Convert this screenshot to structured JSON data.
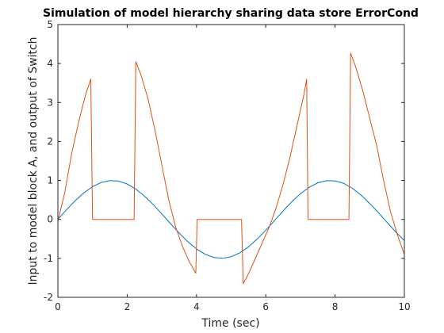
{
  "chart_data": {
    "type": "line",
    "title": "Simulation of model hierarchy sharing data store ErrorCond",
    "xlabel": "Time (sec)",
    "ylabel": "Input to model block A, and output of Switch",
    "xlim": [
      0,
      10
    ],
    "ylim": [
      -2,
      5
    ],
    "xticks": [
      0,
      2,
      4,
      6,
      8,
      10
    ],
    "yticks": [
      -2,
      -1,
      0,
      1,
      2,
      3,
      4,
      5
    ],
    "grid": false,
    "series": [
      {
        "color": "#0072bd",
        "x": [
          0,
          0.25,
          0.5,
          0.75,
          1,
          1.25,
          1.5,
          1.75,
          2,
          2.25,
          2.5,
          2.75,
          3,
          3.25,
          3.5,
          3.75,
          4,
          4.25,
          4.5,
          4.75,
          5,
          5.25,
          5.5,
          5.75,
          6,
          6.25,
          6.5,
          6.75,
          7,
          7.25,
          7.5,
          7.75,
          8,
          8.25,
          8.5,
          8.75,
          9,
          9.25,
          9.5,
          9.75,
          10
        ],
        "y": [
          0,
          0.247,
          0.479,
          0.682,
          0.841,
          0.949,
          0.997,
          0.984,
          0.909,
          0.778,
          0.598,
          0.382,
          0.141,
          -0.108,
          -0.351,
          -0.572,
          -0.757,
          -0.895,
          -0.978,
          -0.999,
          -0.959,
          -0.859,
          -0.706,
          -0.508,
          -0.279,
          -0.033,
          0.215,
          0.451,
          0.657,
          0.823,
          0.938,
          0.994,
          0.989,
          0.925,
          0.798,
          0.624,
          0.412,
          0.174,
          -0.075,
          -0.319,
          -0.544
        ]
      },
      {
        "color": "#d95319",
        "x": [
          0,
          0.2,
          0.4,
          0.6,
          0.8,
          0.95,
          1.0,
          2.2,
          2.25,
          2.4,
          2.6,
          2.8,
          3.0,
          3.2,
          3.4,
          3.6,
          3.8,
          3.98,
          4.02,
          5.3,
          5.35,
          5.5,
          5.7,
          5.9,
          6.1,
          6.3,
          6.5,
          6.7,
          6.9,
          7.1,
          7.18,
          7.22,
          8.4,
          8.45,
          8.6,
          8.8,
          9.0,
          9.2,
          9.4,
          9.6,
          9.8,
          10
        ],
        "y": [
          -0.05,
          0.7,
          1.7,
          2.5,
          3.2,
          3.6,
          0,
          0,
          4.05,
          3.7,
          3.1,
          2.3,
          1.4,
          0.5,
          -0.2,
          -0.7,
          -1.1,
          -1.38,
          0,
          0,
          -1.65,
          -1.4,
          -1.0,
          -0.6,
          -0.2,
          0.3,
          0.9,
          1.6,
          2.4,
          3.2,
          3.6,
          0,
          0,
          4.27,
          3.9,
          3.3,
          2.6,
          1.9,
          1.0,
          0.2,
          -0.4,
          -0.9
        ]
      }
    ]
  }
}
